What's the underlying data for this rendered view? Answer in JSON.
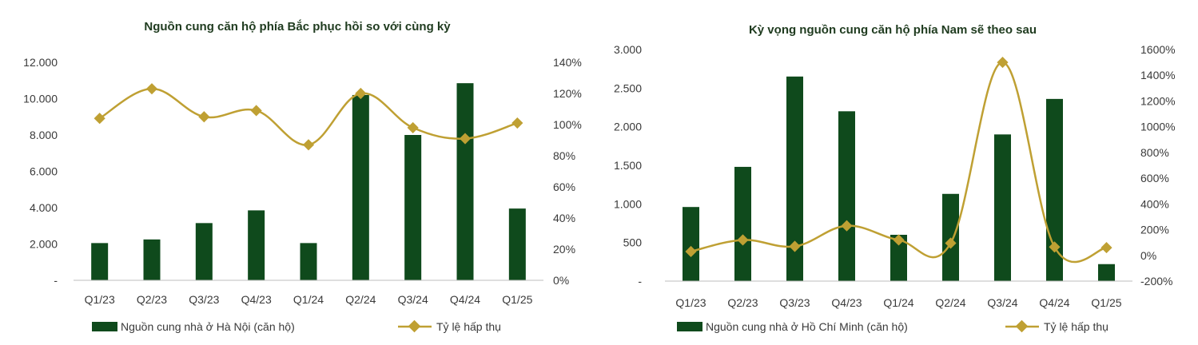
{
  "chart_data": [
    {
      "type": "bar",
      "title": "Nguồn cung căn hộ phía Bắc phục hồi so với cùng kỳ",
      "categories": [
        "Q1/23",
        "Q2/23",
        "Q3/23",
        "Q4/23",
        "Q1/24",
        "Q2/24",
        "Q3/24",
        "Q4/24",
        "Q1/25"
      ],
      "y_ticks": [
        "-",
        "2.000",
        "4.000",
        "6.000",
        "8.000",
        "10.000",
        "12.000"
      ],
      "y2_ticks": [
        "0%",
        "20%",
        "40%",
        "60%",
        "80%",
        "100%",
        "120%",
        "140%"
      ],
      "ylim": [
        0,
        12000
      ],
      "y2lim": [
        0,
        140
      ],
      "series": [
        {
          "name": "Nguồn cung nhà ở Hà Nội (căn hộ)",
          "kind": "bar",
          "axis": "left",
          "values": [
            2050,
            2250,
            3150,
            3850,
            2050,
            10200,
            8000,
            10850,
            3950
          ]
        },
        {
          "name": "Tỷ lệ hấp thụ",
          "kind": "line",
          "axis": "right",
          "values": [
            104,
            123,
            105,
            109,
            87,
            120,
            98,
            91,
            101
          ]
        }
      ],
      "colors": {
        "bar": "#0f4a1c",
        "line": "#bfa033"
      },
      "legend_position": "bottom"
    },
    {
      "type": "bar",
      "title": "Kỳ vọng nguồn cung căn hộ phía Nam sẽ theo sau",
      "categories": [
        "Q1/23",
        "Q2/23",
        "Q3/23",
        "Q4/23",
        "Q1/24",
        "Q2/24",
        "Q3/24",
        "Q4/24",
        "Q1/25"
      ],
      "y_ticks": [
        "-",
        "500",
        "1.000",
        "1.500",
        "2.000",
        "2.500",
        "3.000"
      ],
      "y2_ticks": [
        "-200%",
        "0%",
        "200%",
        "400%",
        "600%",
        "800%",
        "1000%",
        "1200%",
        "1400%",
        "1600%"
      ],
      "ylim": [
        0,
        3000
      ],
      "y2lim": [
        -200,
        1600
      ],
      "series": [
        {
          "name": "Nguồn cung nhà ở Hồ Chí Minh (căn hộ)",
          "kind": "bar",
          "axis": "left",
          "values": [
            960,
            1480,
            2650,
            2200,
            600,
            1130,
            1900,
            2360,
            220
          ]
        },
        {
          "name": "Tỷ lệ hấp thụ",
          "kind": "line",
          "axis": "right",
          "values": [
            30,
            120,
            70,
            230,
            120,
            95,
            1500,
            65,
            60
          ]
        }
      ],
      "colors": {
        "bar": "#0f4a1c",
        "line": "#bfa033"
      },
      "legend_position": "bottom"
    }
  ]
}
